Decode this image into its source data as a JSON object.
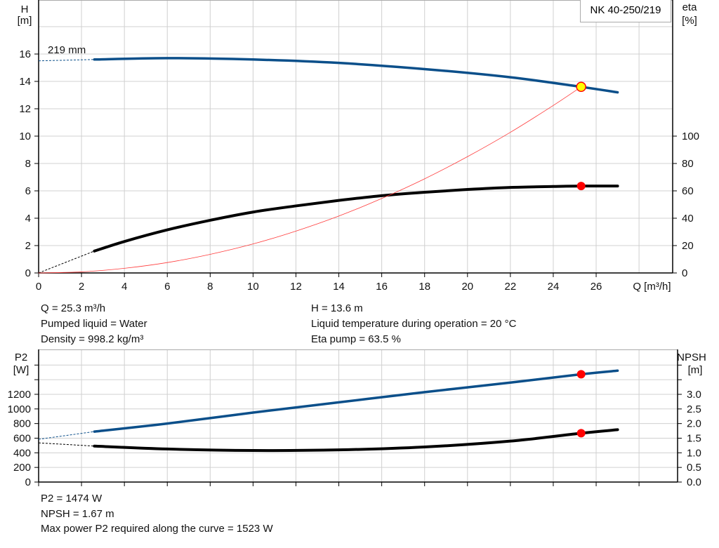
{
  "chart_data": [
    {
      "type": "line",
      "legend": "NK 40-250/219",
      "curve_label": "219 mm",
      "xlabel": "Q [m³/h]",
      "ylabel_left": [
        "H",
        "[m]"
      ],
      "ylabel_right": [
        "eta",
        "[%]"
      ],
      "xlim": [
        0,
        29.6
      ],
      "ylim_left": [
        0,
        20
      ],
      "ylim_right": [
        0,
        200
      ],
      "x_ticks": [
        0,
        2,
        4,
        6,
        8,
        10,
        12,
        14,
        16,
        18,
        20,
        22,
        24,
        26
      ],
      "y_ticks_left": [
        0,
        2,
        4,
        6,
        8,
        10,
        12,
        14,
        16
      ],
      "y_ticks_right": [
        0,
        20,
        40,
        60,
        80,
        100
      ],
      "grid": true,
      "series": [
        {
          "key": "H",
          "axis": "left",
          "color": "#0b4f8a",
          "x": [
            2.6,
            6,
            10,
            14,
            18,
            22,
            25.3,
            27
          ],
          "y": [
            15.6,
            15.7,
            15.6,
            15.35,
            14.9,
            14.3,
            13.6,
            13.2
          ],
          "dashed_start": [
            0,
            15.5
          ]
        },
        {
          "key": "eta",
          "axis": "right",
          "color": "#000000",
          "x": [
            2.6,
            4,
            6,
            8,
            10,
            12,
            14,
            16,
            18,
            20,
            22,
            24,
            25.3,
            27
          ],
          "y": [
            16,
            23,
            31.5,
            38.5,
            44.5,
            49,
            53,
            56.5,
            59,
            61,
            62.5,
            63.2,
            63.5,
            63.5
          ],
          "dashed_start": [
            0,
            0
          ]
        },
        {
          "key": "system",
          "axis": "left",
          "color": "#ff3b3b",
          "x": [
            0,
            2,
            4,
            6,
            8,
            10,
            12,
            14,
            16,
            18,
            20,
            22,
            24,
            25.3
          ],
          "y": [
            0,
            0.08,
            0.34,
            0.76,
            1.36,
            2.12,
            3.06,
            4.16,
            5.44,
            6.88,
            8.5,
            10.28,
            12.24,
            13.6
          ]
        }
      ],
      "markers": [
        {
          "key": "duty-point",
          "axis": "left",
          "x": 25.3,
          "y": 13.6,
          "fill": "#ffff00",
          "stroke": "#ff0000"
        },
        {
          "key": "eta-point",
          "axis": "right",
          "x": 25.3,
          "y": 63.5,
          "fill": "#ff0000"
        }
      ]
    },
    {
      "type": "line",
      "ylabel_left": [
        "P2",
        "[W]"
      ],
      "ylabel_right": [
        "NPSH",
        "[m]"
      ],
      "xlim": [
        0,
        29.6
      ],
      "ylim_left": [
        0,
        1800
      ],
      "ylim_right": [
        0,
        4.5
      ],
      "x_ticks": [
        0,
        2,
        4,
        6,
        8,
        10,
        12,
        14,
        16,
        18,
        20,
        22,
        24,
        26,
        28
      ],
      "y_ticks_left": [
        "0",
        "200",
        "400",
        "600",
        "800",
        "1000",
        "1200"
      ],
      "y_ticks_left_unlabeled": [
        1400,
        1600
      ],
      "y_ticks_right": [
        "0.0",
        "0.5",
        "1.0",
        "1.5",
        "2.0",
        "2.5",
        "3.0"
      ],
      "y_ticks_right_unlabeled": [
        3.5,
        4.0
      ],
      "grid": true,
      "series": [
        {
          "key": "P2",
          "axis": "left",
          "color": "#0b4f8a",
          "x": [
            2.6,
            6,
            10,
            14,
            18,
            22,
            25.3,
            27
          ],
          "y": [
            690,
            800,
            950,
            1090,
            1230,
            1360,
            1474,
            1523
          ],
          "dashed_start": [
            0,
            585
          ]
        },
        {
          "key": "NPSH",
          "axis": "right",
          "color": "#000000",
          "x": [
            2.6,
            6,
            10,
            14,
            18,
            22,
            25.3,
            27
          ],
          "y": [
            1.23,
            1.13,
            1.08,
            1.1,
            1.2,
            1.4,
            1.67,
            1.79
          ],
          "dashed_start": [
            0,
            1.34
          ]
        }
      ],
      "markers": [
        {
          "key": "p2-point",
          "axis": "left",
          "x": 25.3,
          "y": 1474,
          "fill": "#ff0000"
        },
        {
          "key": "npsh-point",
          "axis": "right",
          "x": 25.3,
          "y": 1.67,
          "fill": "#ff0000"
        }
      ]
    }
  ],
  "info_top": {
    "left": [
      "Q = 25.3 m³/h",
      "Pumped liquid = Water",
      "Density = 998.2 kg/m³"
    ],
    "right": [
      "H = 13.6 m",
      "Liquid temperature during operation = 20 °C",
      "Eta pump = 63.5 %"
    ]
  },
  "info_bottom": [
    "P2 = 1474 W",
    "NPSH = 1.67 m",
    "Max power P2 required along the curve = 1523 W"
  ]
}
